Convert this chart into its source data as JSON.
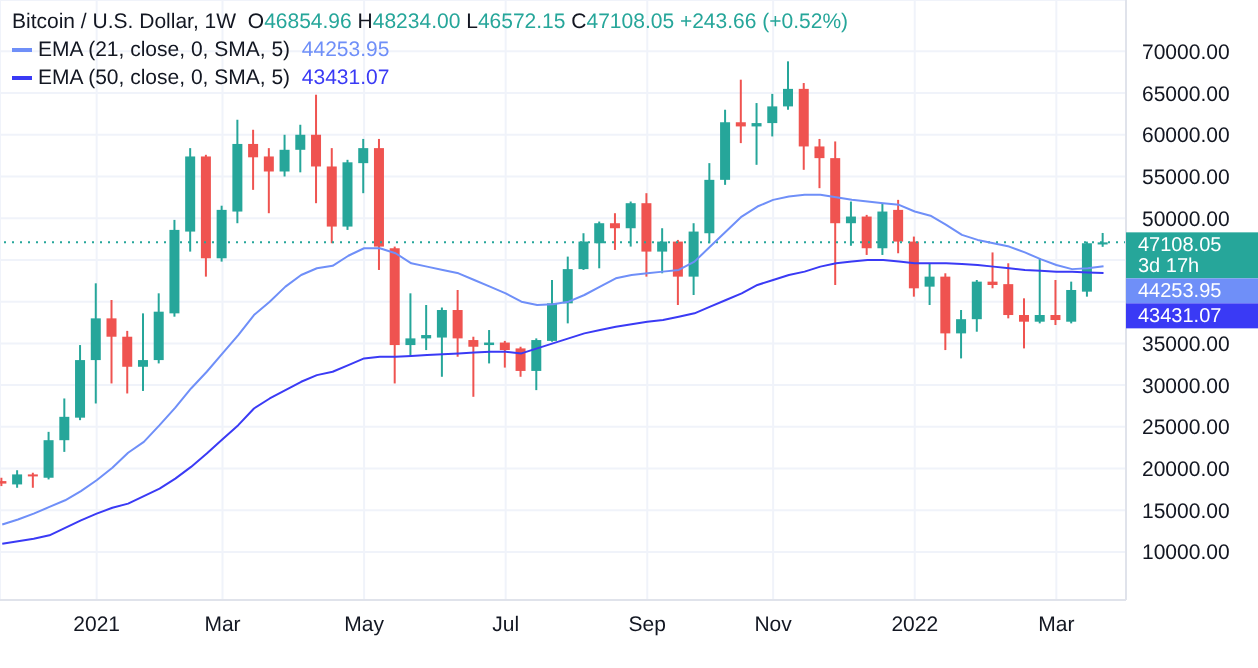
{
  "chart_data": {
    "type": "candlestick",
    "title": "Bitcoin / U.S. Dollar, 1W",
    "legend": "top left",
    "grid": true,
    "x": [
      "2020-11-23",
      "2020-11-30",
      "2020-12-07",
      "2020-12-14",
      "2020-12-21",
      "2020-12-28",
      "2021-01-04",
      "2021-01-11",
      "2021-01-18",
      "2021-01-25",
      "2021-02-01",
      "2021-02-08",
      "2021-02-15",
      "2021-02-22",
      "2021-03-01",
      "2021-03-08",
      "2021-03-15",
      "2021-03-22",
      "2021-03-29",
      "2021-04-05",
      "2021-04-12",
      "2021-04-19",
      "2021-04-26",
      "2021-05-03",
      "2021-05-10",
      "2021-05-17",
      "2021-05-24",
      "2021-05-31",
      "2021-06-07",
      "2021-06-14",
      "2021-06-21",
      "2021-06-28",
      "2021-07-05",
      "2021-07-12",
      "2021-07-19",
      "2021-07-26",
      "2021-08-02",
      "2021-08-09",
      "2021-08-16",
      "2021-08-23",
      "2021-08-30",
      "2021-09-06",
      "2021-09-13",
      "2021-09-20",
      "2021-09-27",
      "2021-10-04",
      "2021-10-11",
      "2021-10-18",
      "2021-10-25",
      "2021-11-01",
      "2021-11-08",
      "2021-11-15",
      "2021-11-22",
      "2021-11-29",
      "2021-12-06",
      "2021-12-13",
      "2021-12-20",
      "2021-12-27",
      "2022-01-03",
      "2022-01-10",
      "2022-01-17",
      "2022-01-24",
      "2022-01-31",
      "2022-02-07",
      "2022-02-14",
      "2022-02-21",
      "2022-02-28",
      "2022-03-07",
      "2022-03-14",
      "2022-03-21",
      "2022-03-28"
    ],
    "ohlc": [
      [
        18500,
        18900,
        17900,
        18200
      ],
      [
        18100,
        19800,
        17700,
        19300
      ],
      [
        19300,
        19500,
        17700,
        19100
      ],
      [
        18900,
        24400,
        18700,
        23400
      ],
      [
        23400,
        28400,
        22000,
        26200
      ],
      [
        26100,
        34800,
        25800,
        33000
      ],
      [
        33000,
        42200,
        27800,
        38000
      ],
      [
        38000,
        40200,
        30200,
        35800
      ],
      [
        35800,
        36500,
        29000,
        32200
      ],
      [
        32200,
        38600,
        29300,
        33000
      ],
      [
        33000,
        41000,
        32600,
        38800
      ],
      [
        38600,
        49800,
        38200,
        48600
      ],
      [
        48400,
        58400,
        46000,
        57400
      ],
      [
        57400,
        57600,
        43000,
        45200
      ],
      [
        45200,
        51500,
        44800,
        51000
      ],
      [
        50800,
        61800,
        49400,
        58900
      ],
      [
        58900,
        60600,
        53400,
        57300
      ],
      [
        57400,
        58400,
        50600,
        55600
      ],
      [
        55600,
        60000,
        55000,
        58200
      ],
      [
        58200,
        61200,
        55500,
        60000
      ],
      [
        60000,
        64800,
        51800,
        56200
      ],
      [
        56200,
        58400,
        47000,
        49000
      ],
      [
        49000,
        57000,
        48600,
        56700
      ],
      [
        56600,
        59500,
        53000,
        58400
      ],
      [
        58400,
        59500,
        43800,
        46600
      ],
      [
        46400,
        46600,
        30200,
        34800
      ],
      [
        34800,
        41000,
        33400,
        35600
      ],
      [
        35600,
        39600,
        34200,
        36000
      ],
      [
        35700,
        39300,
        31000,
        39000
      ],
      [
        39000,
        41400,
        33400,
        35600
      ],
      [
        35400,
        35800,
        28600,
        34600
      ],
      [
        34800,
        36600,
        32600,
        35100
      ],
      [
        35100,
        35300,
        32100,
        34200
      ],
      [
        34400,
        34600,
        31000,
        31700
      ],
      [
        31700,
        35600,
        29400,
        35400
      ],
      [
        35300,
        42600,
        35200,
        39800
      ],
      [
        39800,
        45400,
        37400,
        43900
      ],
      [
        43900,
        48200,
        43800,
        47200
      ],
      [
        47000,
        49600,
        44000,
        49400
      ],
      [
        49400,
        50600,
        46200,
        48800
      ],
      [
        48800,
        52000,
        46600,
        51800
      ],
      [
        51800,
        53000,
        43000,
        46000
      ],
      [
        46000,
        48800,
        43400,
        47200
      ],
      [
        47200,
        47400,
        39600,
        43000
      ],
      [
        43000,
        49400,
        40800,
        48400
      ],
      [
        48200,
        56600,
        47000,
        54600
      ],
      [
        54600,
        63000,
        54000,
        61500
      ],
      [
        61500,
        66600,
        59000,
        61000
      ],
      [
        61000,
        63800,
        56400,
        61400
      ],
      [
        61400,
        64900,
        59800,
        63400
      ],
      [
        63400,
        68800,
        63000,
        65500
      ],
      [
        65500,
        66200,
        55800,
        58600
      ],
      [
        58600,
        59500,
        53600,
        57200
      ],
      [
        57200,
        59200,
        42000,
        49400
      ],
      [
        49400,
        52000,
        46700,
        50200
      ],
      [
        50200,
        50400,
        45600,
        46400
      ],
      [
        46400,
        51800,
        45600,
        50800
      ],
      [
        51000,
        52200,
        45800,
        47200
      ],
      [
        47200,
        47800,
        40600,
        41600
      ],
      [
        41800,
        44600,
        39600,
        43000
      ],
      [
        43000,
        43400,
        34200,
        36200
      ],
      [
        36200,
        39000,
        33200,
        37900
      ],
      [
        37900,
        42600,
        36400,
        42400
      ],
      [
        42400,
        45900,
        41600,
        42000
      ],
      [
        42100,
        44600,
        38000,
        38400
      ],
      [
        38400,
        40400,
        34400,
        37600
      ],
      [
        37600,
        45200,
        37400,
        38400
      ],
      [
        38400,
        42600,
        37200,
        37800
      ],
      [
        37600,
        42400,
        37400,
        41400
      ],
      [
        41200,
        47200,
        40600,
        47000
      ],
      [
        46854.96,
        48234.0,
        46572.15,
        47108.05
      ]
    ],
    "colors": [
      "#ef5350",
      "#26a69a",
      "#ef5350",
      "#26a69a",
      "#26a69a",
      "#26a69a",
      "#26a69a",
      "#ef5350",
      "#ef5350",
      "#26a69a",
      "#26a69a",
      "#26a69a",
      "#26a69a",
      "#ef5350",
      "#26a69a",
      "#26a69a",
      "#ef5350",
      "#ef5350",
      "#26a69a",
      "#26a69a",
      "#ef5350",
      "#ef5350",
      "#26a69a",
      "#26a69a",
      "#ef5350",
      "#ef5350",
      "#26a69a",
      "#26a69a",
      "#26a69a",
      "#ef5350",
      "#ef5350",
      "#26a69a",
      "#ef5350",
      "#ef5350",
      "#26a69a",
      "#26a69a",
      "#26a69a",
      "#26a69a",
      "#26a69a",
      "#ef5350",
      "#26a69a",
      "#ef5350",
      "#26a69a",
      "#ef5350",
      "#26a69a",
      "#26a69a",
      "#26a69a",
      "#ef5350",
      "#26a69a",
      "#26a69a",
      "#26a69a",
      "#ef5350",
      "#ef5350",
      "#ef5350",
      "#26a69a",
      "#ef5350",
      "#26a69a",
      "#ef5350",
      "#ef5350",
      "#26a69a",
      "#ef5350",
      "#26a69a",
      "#26a69a",
      "#ef5350",
      "#ef5350",
      "#ef5350",
      "#26a69a",
      "#ef5350",
      "#26a69a",
      "#26a69a",
      "#26a69a"
    ],
    "series": [
      {
        "type": "line",
        "name": "EMA (21, close, 0, SMA, 5)",
        "color": "#6f8ff8",
        "values": [
          13300,
          13900,
          14600,
          15400,
          16200,
          17300,
          18600,
          20100,
          21900,
          23200,
          25200,
          27300,
          29600,
          31600,
          33800,
          36000,
          38400,
          40000,
          41800,
          43200,
          44000,
          44300,
          45500,
          46400,
          46400,
          45800,
          44600,
          44200,
          43800,
          43400,
          42600,
          41800,
          41000,
          40000,
          39600,
          39700,
          40000,
          40800,
          41800,
          42800,
          43200,
          43400,
          43600,
          43800,
          44800,
          46600,
          48400,
          50200,
          51400,
          52200,
          52600,
          52800,
          52800,
          52500,
          52200,
          52000,
          51800,
          51600,
          50800,
          50300,
          49200,
          48000,
          47400,
          47000,
          46600,
          45900,
          45100,
          44400,
          43900,
          44000,
          44253.95
        ]
      },
      {
        "type": "line",
        "name": "EMA (50, close, 0, SMA, 5)",
        "color": "#3a3af5",
        "values": [
          11000,
          11300,
          11600,
          12000,
          12900,
          13800,
          14600,
          15300,
          15800,
          16700,
          17600,
          18800,
          20200,
          21800,
          23500,
          25200,
          27200,
          28400,
          29400,
          30400,
          31200,
          31600,
          32400,
          33200,
          33400,
          33400,
          33500,
          33600,
          33700,
          33800,
          33900,
          34000,
          34000,
          33800,
          34400,
          35000,
          35600,
          36200,
          36600,
          37000,
          37300,
          37600,
          37800,
          38200,
          38600,
          39400,
          40200,
          41000,
          42000,
          42600,
          43200,
          43600,
          44200,
          44600,
          44800,
          45000,
          45000,
          44800,
          44600,
          44600,
          44600,
          44500,
          44400,
          44200,
          44000,
          43800,
          43700,
          43600,
          43600,
          43500,
          43431.07
        ]
      }
    ],
    "xlim": [
      "2020-11-22",
      "2022-04-07"
    ],
    "xticks": [
      {
        "value": "2021-01-04",
        "label": "2021"
      },
      {
        "value": "2021-03-01",
        "label": "Mar"
      },
      {
        "value": "2021-05-03",
        "label": "May"
      },
      {
        "value": "2021-07-05",
        "label": "Jul"
      },
      {
        "value": "2021-09-06",
        "label": "Sep"
      },
      {
        "value": "2021-11-01",
        "label": "Nov"
      },
      {
        "value": "2022-01-03",
        "label": "2022"
      },
      {
        "value": "2022-03-07",
        "label": "Mar"
      }
    ],
    "ylim": [
      4250,
      76150
    ],
    "yticks": [
      {
        "value": 10000,
        "label": "10000.00"
      },
      {
        "value": 15000,
        "label": "15000.00"
      },
      {
        "value": 20000,
        "label": "20000.00"
      },
      {
        "value": 25000,
        "label": "25000.00"
      },
      {
        "value": 30000,
        "label": "30000.00"
      },
      {
        "value": 35000,
        "label": "35000.00"
      },
      {
        "value": 40000,
        "label": null
      },
      {
        "value": 45000,
        "label": null
      },
      {
        "value": 50000,
        "label": "50000.00"
      },
      {
        "value": 55000,
        "label": "55000.00"
      },
      {
        "value": 60000,
        "label": "60000.00"
      },
      {
        "value": 65000,
        "label": "65000.00"
      },
      {
        "value": 70000,
        "label": "70000.00"
      }
    ],
    "ref_lines": [
      {
        "axis": "y",
        "value": 47108.05,
        "label": "47108.05",
        "color": "#26a69a",
        "line_style": "dotted"
      }
    ],
    "annotations": [
      "O46854.96 H48234.00 L46572.15 C47108.05 +243.66 (+0.52%)",
      "3d 17h",
      "44253.95",
      "43431.07"
    ]
  }
}
